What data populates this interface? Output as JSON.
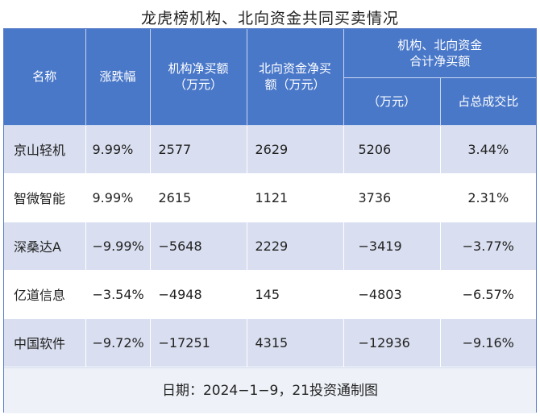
{
  "title": "龙虎榜机构、北向资金共同买卖情况",
  "headers": {
    "name": "名称",
    "change": "涨跌幅",
    "inst_net": "机构净买额（万元）",
    "north_net": "北向资金净买额（万元）",
    "combined": "机构、北向资金合计净买额",
    "combined_unit": "（万元）",
    "turnover_share": "占总成交比"
  },
  "rows": [
    {
      "name": "京山轻机",
      "change": "9.99%",
      "inst_net": "2577",
      "north_net": "2629",
      "combined": "5206",
      "share": "3.44%"
    },
    {
      "name": "智微智能",
      "change": "9.99%",
      "inst_net": "2615",
      "north_net": "1121",
      "combined": "3736",
      "share": "2.31%"
    },
    {
      "name": "深桑达A",
      "change": "−9.99%",
      "inst_net": "−5648",
      "north_net": "2229",
      "combined": "−3419",
      "share": "−3.77%"
    },
    {
      "name": "亿道信息",
      "change": "−3.54%",
      "inst_net": "−4948",
      "north_net": "145",
      "combined": "−4803",
      "share": "−6.57%"
    },
    {
      "name": "中国软件",
      "change": "−9.72%",
      "inst_net": "−17251",
      "north_net": "4315",
      "combined": "−12936",
      "share": "−9.16%"
    }
  ],
  "footer": "日期：2024−1−9，21投资通制图"
}
